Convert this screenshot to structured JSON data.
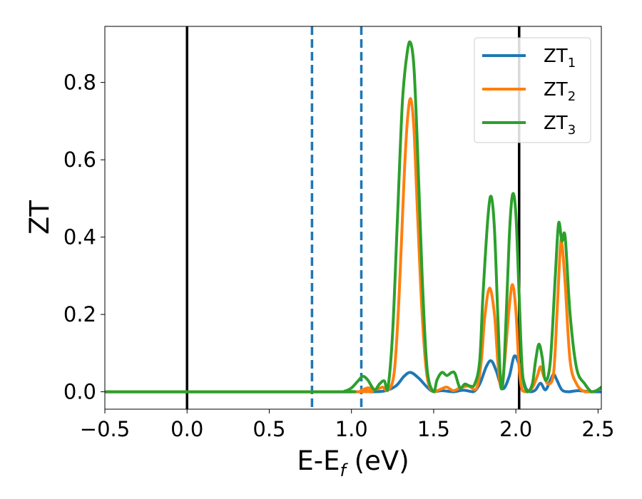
{
  "chart_data": {
    "type": "line",
    "title": "",
    "xlabel": {
      "base": "E-E",
      "sub": "f",
      "suffix": " (eV)"
    },
    "ylabel": "ZT",
    "xlim": [
      -0.5,
      2.52
    ],
    "ylim": [
      -0.045,
      0.945
    ],
    "grid": false,
    "legend_position": "top-right",
    "xticks": [
      -0.5,
      0.0,
      0.5,
      1.0,
      1.5,
      2.0,
      2.5
    ],
    "xtick_labels": [
      "−0.5",
      "0.0",
      "0.5",
      "1.0",
      "1.5",
      "2.0",
      "2.5"
    ],
    "yticks": [
      0.0,
      0.2,
      0.4,
      0.6,
      0.8
    ],
    "ytick_labels": [
      "0.0",
      "0.2",
      "0.4",
      "0.6",
      "0.8"
    ],
    "reference_lines": [
      {
        "x": 0.0,
        "color": "#000000",
        "style": "solid"
      },
      {
        "x": 2.02,
        "color": "#000000",
        "style": "solid"
      },
      {
        "x": 0.76,
        "color": "#1f77b4",
        "style": "dashed"
      },
      {
        "x": 1.06,
        "color": "#1f77b4",
        "style": "dashed"
      }
    ],
    "series": [
      {
        "name": "ZT",
        "sub": "1",
        "color": "#1f77b4",
        "x": [
          -0.5,
          1.0,
          1.06,
          1.12,
          1.2,
          1.27,
          1.32,
          1.36,
          1.41,
          1.46,
          1.5,
          1.55,
          1.62,
          1.68,
          1.74,
          1.78,
          1.82,
          1.85,
          1.88,
          1.92,
          1.96,
          1.99,
          2.02,
          2.06,
          2.09,
          2.12,
          2.15,
          2.18,
          2.21,
          2.23,
          2.25,
          2.28,
          2.32,
          2.38,
          2.45,
          2.52
        ],
        "y": [
          0.0,
          0.0,
          0.003,
          0.0,
          0.002,
          0.015,
          0.04,
          0.05,
          0.035,
          0.012,
          0.0,
          0.003,
          0.0,
          0.004,
          0.0,
          0.02,
          0.065,
          0.08,
          0.055,
          0.008,
          0.04,
          0.092,
          0.07,
          0.01,
          0.0,
          0.005,
          0.022,
          0.005,
          0.03,
          0.045,
          0.03,
          0.005,
          0.0,
          0.003,
          0.0,
          0.0
        ]
      },
      {
        "name": "ZT",
        "sub": "2",
        "color": "#ff7f0e",
        "x": [
          -0.5,
          1.0,
          1.06,
          1.1,
          1.15,
          1.19,
          1.22,
          1.26,
          1.29,
          1.32,
          1.34,
          1.36,
          1.38,
          1.4,
          1.43,
          1.46,
          1.5,
          1.55,
          1.58,
          1.62,
          1.66,
          1.71,
          1.76,
          1.79,
          1.81,
          1.84,
          1.87,
          1.89,
          1.91,
          1.93,
          1.96,
          1.98,
          2.0,
          2.02,
          2.04,
          2.07,
          2.1,
          2.13,
          2.15,
          2.17,
          2.2,
          2.23,
          2.25,
          2.27,
          2.28,
          2.3,
          2.33,
          2.37,
          2.42,
          2.47,
          2.52
        ],
        "y": [
          0.0,
          0.0,
          0.004,
          0.01,
          0.006,
          0.012,
          0.003,
          0.05,
          0.25,
          0.55,
          0.7,
          0.758,
          0.68,
          0.48,
          0.2,
          0.04,
          0.0,
          0.008,
          0.012,
          0.003,
          0.01,
          0.015,
          0.008,
          0.08,
          0.19,
          0.268,
          0.2,
          0.08,
          0.01,
          0.07,
          0.22,
          0.277,
          0.21,
          0.06,
          0.003,
          0.0,
          0.01,
          0.04,
          0.065,
          0.04,
          0.02,
          0.05,
          0.2,
          0.37,
          0.385,
          0.28,
          0.08,
          0.02,
          0.0,
          0.0,
          0.01
        ]
      },
      {
        "name": "ZT",
        "sub": "3",
        "color": "#2ca02c",
        "x": [
          -0.5,
          0.9,
          0.96,
          1.0,
          1.04,
          1.07,
          1.1,
          1.14,
          1.17,
          1.2,
          1.22,
          1.25,
          1.28,
          1.31,
          1.34,
          1.36,
          1.38,
          1.4,
          1.43,
          1.46,
          1.5,
          1.52,
          1.55,
          1.58,
          1.61,
          1.63,
          1.66,
          1.69,
          1.72,
          1.75,
          1.78,
          1.8,
          1.83,
          1.85,
          1.87,
          1.89,
          1.91,
          1.93,
          1.96,
          1.98,
          2.0,
          2.02,
          2.04,
          2.07,
          2.1,
          2.12,
          2.14,
          2.16,
          2.18,
          2.21,
          2.24,
          2.26,
          2.28,
          2.3,
          2.33,
          2.37,
          2.42,
          2.46,
          2.49,
          2.52
        ],
        "y": [
          0.0,
          0.0,
          0.002,
          0.01,
          0.028,
          0.04,
          0.03,
          0.005,
          0.02,
          0.028,
          0.005,
          0.15,
          0.45,
          0.75,
          0.88,
          0.902,
          0.84,
          0.65,
          0.3,
          0.06,
          0.0,
          0.03,
          0.05,
          0.042,
          0.05,
          0.047,
          0.01,
          0.02,
          0.015,
          0.02,
          0.08,
          0.25,
          0.45,
          0.505,
          0.42,
          0.2,
          0.01,
          0.08,
          0.4,
          0.51,
          0.46,
          0.25,
          0.05,
          0.0,
          0.02,
          0.08,
          0.123,
          0.09,
          0.03,
          0.08,
          0.3,
          0.436,
          0.39,
          0.4,
          0.2,
          0.06,
          0.02,
          0.0,
          0.003,
          0.012
        ]
      }
    ]
  }
}
